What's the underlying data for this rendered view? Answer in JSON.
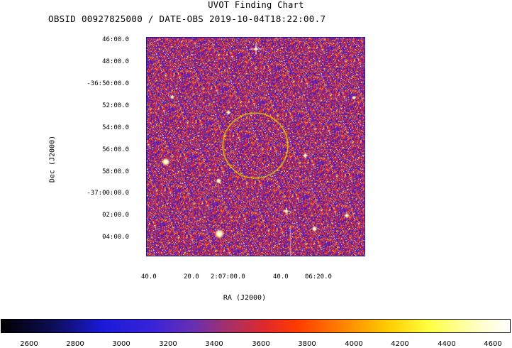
{
  "title": "UVOT Finding Chart",
  "subtitle": "OBSID 00927825000 / DATE-OBS 2019-10-04T18:22:00.7",
  "axes": {
    "ylabel": "Dec (J2000)",
    "xlabel": "RA (J2000)",
    "dec_ticks": [
      "46:00.0",
      "48:00.0",
      "-36:50:00.0",
      "52:00.0",
      "54:00.0",
      "56:00.0",
      "58:00.0",
      "-37:00:00.0",
      "02:00.0",
      "04:00.0"
    ],
    "ra_ticks": [
      "40.0",
      "20.0",
      "2:07:00.0",
      "40.0",
      "06:20.0"
    ]
  },
  "colorbar": {
    "ticks": [
      "2600",
      "2800",
      "3000",
      "3200",
      "3400",
      "3600",
      "3800",
      "4000",
      "4200",
      "4400",
      "4600"
    ]
  },
  "colors": {
    "background_noise": "#c8322e",
    "circle": "#e6c800",
    "frame": "#1a1aa0"
  },
  "image": {
    "circle_marker": "target-circle",
    "colormap": "heat-blue-red-yellow-white"
  }
}
